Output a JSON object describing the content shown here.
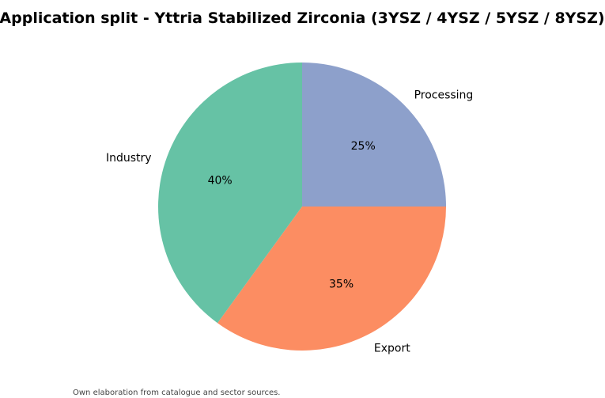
{
  "chart_data": {
    "type": "pie",
    "title": "Application split - Yttria Stabilized Zirconia (3YSZ / 4YSZ / 5YSZ / 8YSZ)",
    "slices": [
      {
        "label": "Processing",
        "value": 25,
        "pct_label": "25%",
        "color": "#8da0cb"
      },
      {
        "label": "Export",
        "value": 35,
        "pct_label": "35%",
        "color": "#fc8d62"
      },
      {
        "label": "Industry",
        "value": 40,
        "pct_label": "40%",
        "color": "#66c2a5"
      }
    ],
    "start_angle": "top (12 o'clock)",
    "direction": "clockwise",
    "legend": "none"
  },
  "footer": {
    "source_note": "Own elaboration from catalogue and sector sources."
  }
}
